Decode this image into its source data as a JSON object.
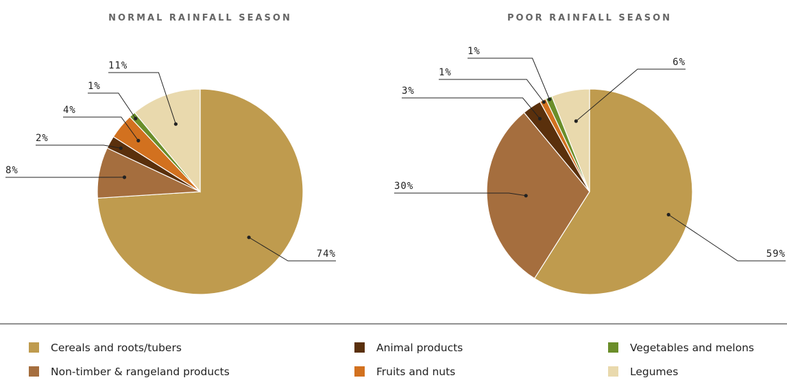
{
  "chart_data": [
    {
      "type": "pie",
      "title": "NORMAL RAINFALL SEASON",
      "slices": [
        {
          "name": "Cereals and roots/tubers",
          "value": 74,
          "label": "74%"
        },
        {
          "name": "Non-timber & rangeland products",
          "value": 8,
          "label": "8%"
        },
        {
          "name": "Animal products",
          "value": 2,
          "label": "2%"
        },
        {
          "name": "Fruits and nuts",
          "value": 4,
          "label": "4%"
        },
        {
          "name": "Vegetables and melons",
          "value": 1,
          "label": "1%"
        },
        {
          "name": "Legumes",
          "value": 11,
          "label": "11%"
        }
      ]
    },
    {
      "type": "pie",
      "title": "POOR RAINFALL SEASON",
      "slices": [
        {
          "name": "Cereals and roots/tubers",
          "value": 59,
          "label": "59%"
        },
        {
          "name": "Non-timber & rangeland products",
          "value": 30,
          "label": "30%"
        },
        {
          "name": "Animal products",
          "value": 3,
          "label": "3%"
        },
        {
          "name": "Fruits and nuts",
          "value": 1,
          "label": "1%"
        },
        {
          "name": "Vegetables and melons",
          "value": 1,
          "label": "1%"
        },
        {
          "name": "Legumes",
          "value": 6,
          "label": "6%"
        }
      ]
    }
  ],
  "legend": [
    {
      "label": "Cereals and roots/tubers",
      "color": "#bf9b4e"
    },
    {
      "label": "Non-timber & rangeland products",
      "color": "#a56e3e"
    },
    {
      "label": "Animal products",
      "color": "#5a300c"
    },
    {
      "label": "Fruits and nuts",
      "color": "#d2711f"
    },
    {
      "label": "Vegetables and melons",
      "color": "#6b8e2a"
    },
    {
      "label": "Legumes",
      "color": "#e9d9ad"
    }
  ]
}
